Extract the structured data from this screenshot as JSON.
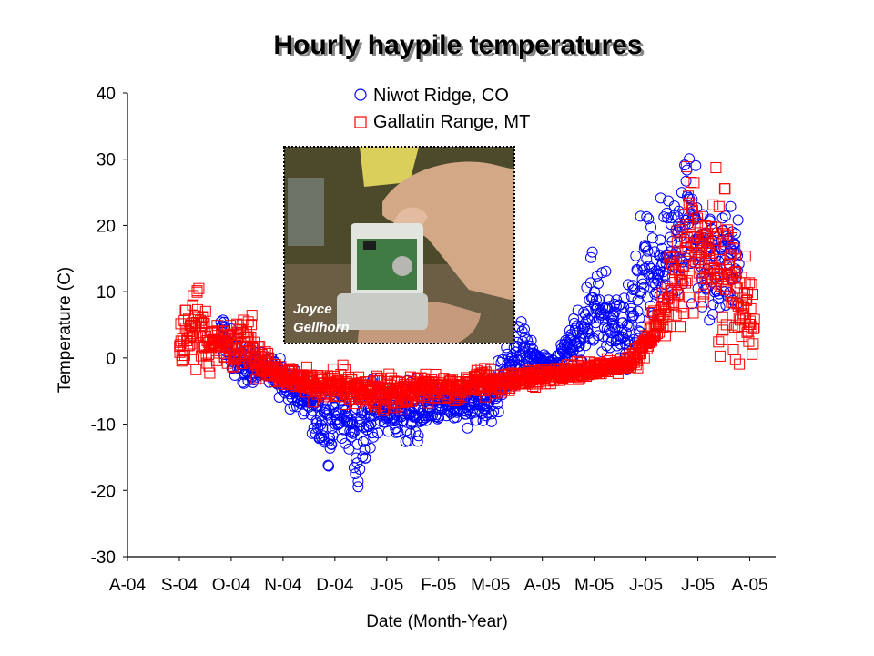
{
  "chart_data": {
    "type": "scatter",
    "title": "Hourly haypile temperatures",
    "xlabel": "Date (Month-Year)",
    "ylabel": "Temperature (C)",
    "ylim": [
      -30,
      40
    ],
    "yticks": [
      40,
      30,
      20,
      10,
      0,
      -10,
      -20,
      -30
    ],
    "xlim": [
      0,
      12.5
    ],
    "xtick_labels": [
      "A-04",
      "S-04",
      "O-04",
      "N-04",
      "D-04",
      "J-05",
      "F-05",
      "M-05",
      "A-05",
      "M-05",
      "J-05",
      "J-05",
      "A-05"
    ],
    "grid": false,
    "legend_position": "top",
    "series": [
      {
        "name": "Niwot Ridge, CO",
        "marker": "circle",
        "color": "#0000ff",
        "bands": [
          [
            1.8,
            -1,
            9
          ],
          [
            2.2,
            -5,
            2
          ],
          [
            2.6,
            -4,
            1
          ],
          [
            3.0,
            -7,
            0
          ],
          [
            3.3,
            -9,
            -1
          ],
          [
            3.5,
            -12,
            -2
          ],
          [
            3.7,
            -15,
            -3
          ],
          [
            3.9,
            -17,
            -3
          ],
          [
            4.1,
            -13,
            -3
          ],
          [
            4.3,
            -16,
            -4
          ],
          [
            4.45,
            -22,
            -3
          ],
          [
            4.6,
            -17,
            -3
          ],
          [
            4.8,
            -12,
            -3
          ],
          [
            5.0,
            -13,
            -3
          ],
          [
            5.3,
            -12,
            -3
          ],
          [
            5.6,
            -15,
            -3
          ],
          [
            5.9,
            -12,
            -3
          ],
          [
            6.2,
            -11,
            -3
          ],
          [
            6.5,
            -12,
            -3
          ],
          [
            6.8,
            -10,
            -3
          ],
          [
            7.0,
            -11,
            -2
          ],
          [
            7.2,
            -9,
            1
          ],
          [
            7.4,
            -5,
            3
          ],
          [
            7.6,
            -5,
            8
          ],
          [
            7.8,
            -4,
            3
          ],
          [
            8.0,
            -3,
            2
          ],
          [
            8.2,
            -3,
            0
          ],
          [
            8.4,
            -2,
            3
          ],
          [
            8.6,
            -1,
            7
          ],
          [
            8.8,
            -2,
            10
          ],
          [
            9.0,
            -1,
            20
          ],
          [
            9.2,
            -2,
            15
          ],
          [
            9.4,
            -2,
            12
          ],
          [
            9.6,
            -5,
            11
          ],
          [
            9.8,
            -2,
            19
          ],
          [
            10.0,
            1,
            25
          ],
          [
            10.2,
            2,
            22
          ],
          [
            10.4,
            6,
            28
          ],
          [
            10.6,
            8,
            26
          ],
          [
            10.8,
            9,
            32
          ],
          [
            11.0,
            7,
            30
          ],
          [
            11.2,
            3,
            27
          ],
          [
            11.4,
            4,
            21
          ],
          [
            11.6,
            5,
            25
          ],
          [
            11.8,
            5,
            23
          ]
        ]
      },
      {
        "name": "Gallatin Range, MT",
        "marker": "square",
        "color": "#ff0000",
        "bands": [
          [
            1.0,
            -2,
            5
          ],
          [
            1.1,
            -1,
            7
          ],
          [
            1.2,
            -2,
            12
          ],
          [
            1.3,
            -3,
            14
          ],
          [
            1.5,
            -2,
            8
          ],
          [
            1.7,
            -3,
            6
          ],
          [
            1.9,
            -2,
            7
          ],
          [
            2.0,
            -2,
            9
          ],
          [
            2.2,
            -3,
            6
          ],
          [
            2.4,
            -3,
            8
          ],
          [
            2.6,
            -4,
            3
          ],
          [
            2.8,
            -4,
            0
          ],
          [
            3.0,
            -5,
            -1
          ],
          [
            3.3,
            -6,
            -1
          ],
          [
            3.6,
            -7,
            -1
          ],
          [
            3.9,
            -7,
            -1
          ],
          [
            4.2,
            -8,
            -1
          ],
          [
            4.5,
            -8,
            -2
          ],
          [
            4.8,
            -8,
            -2
          ],
          [
            5.1,
            -8,
            -2
          ],
          [
            5.4,
            -8,
            -2
          ],
          [
            5.7,
            -7,
            -2
          ],
          [
            6.0,
            -7,
            -2
          ],
          [
            6.3,
            -7,
            -2
          ],
          [
            6.6,
            -6,
            -2
          ],
          [
            6.9,
            -6,
            -1
          ],
          [
            7.2,
            -6,
            -2
          ],
          [
            7.5,
            -5,
            -1
          ],
          [
            7.8,
            -5,
            -1
          ],
          [
            8.1,
            -4,
            -1
          ],
          [
            8.4,
            -4,
            -1
          ],
          [
            8.7,
            -4,
            0
          ],
          [
            9.0,
            -3,
            0
          ],
          [
            9.3,
            -3,
            0
          ],
          [
            9.6,
            -2,
            0
          ],
          [
            9.8,
            -2,
            2
          ],
          [
            10.0,
            -1,
            5
          ],
          [
            10.2,
            0,
            10
          ],
          [
            10.4,
            0,
            15
          ],
          [
            10.6,
            1,
            24
          ],
          [
            10.8,
            3,
            33
          ],
          [
            11.0,
            4,
            30
          ],
          [
            11.2,
            2,
            27
          ],
          [
            11.4,
            0,
            32
          ],
          [
            11.6,
            1,
            22
          ],
          [
            11.8,
            -3,
            17
          ],
          [
            12.0,
            -1,
            15
          ],
          [
            12.1,
            0,
            12
          ]
        ]
      }
    ]
  },
  "photo": {
    "credit": [
      "Joyce",
      "Gellhorn"
    ]
  }
}
